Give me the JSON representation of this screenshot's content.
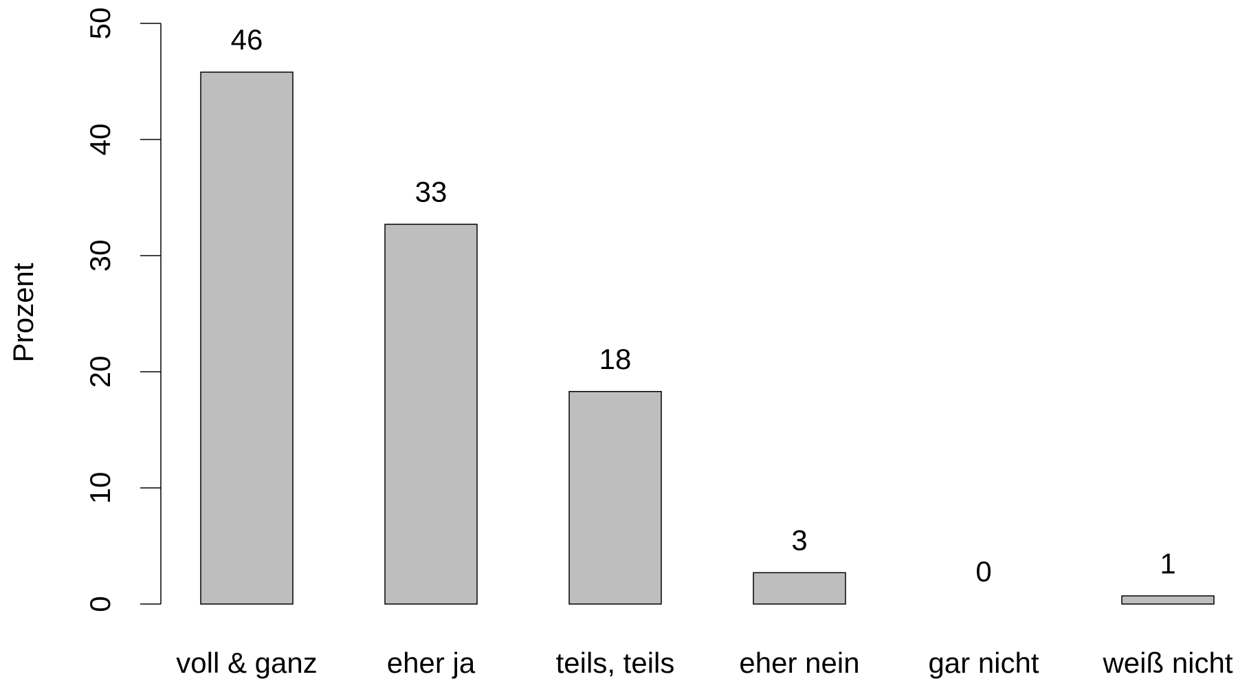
{
  "chart_data": {
    "type": "bar",
    "y_label": "Prozent",
    "categories": [
      "voll & ganz",
      "eher ja",
      "teils, teils",
      "eher nein",
      "gar nicht",
      "weiß nicht"
    ],
    "values": [
      45.8,
      32.7,
      18.3,
      2.7,
      0,
      0.7
    ],
    "value_labels": [
      "46",
      "33",
      "18",
      "3",
      "0",
      "1"
    ],
    "color": "#bebebe",
    "ylim": [
      0,
      50
    ],
    "yticks": [
      0,
      10,
      20,
      30,
      40,
      50
    ]
  }
}
